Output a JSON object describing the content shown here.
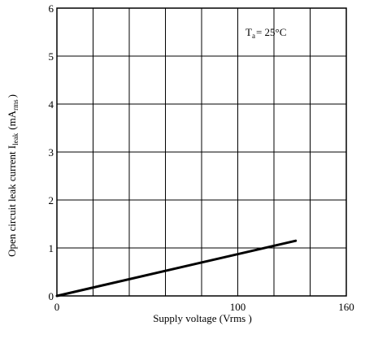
{
  "chart_data": {
    "type": "line",
    "title": "",
    "xlabel": "Supply voltage",
    "xlabel_unit": "(Vrms )",
    "ylabel_main": "Open circuit leak current I",
    "ylabel_sub": "leak",
    "ylabel_unit_open": "(mA",
    "ylabel_unit_sub": "rms",
    "ylabel_unit_close": ")",
    "xlim": [
      0,
      160
    ],
    "ylim": [
      0,
      6
    ],
    "x_tick_labels": [
      {
        "value": 0,
        "label": "0"
      },
      {
        "value": 100,
        "label": "100"
      },
      {
        "value": 160,
        "label": "160"
      }
    ],
    "y_tick_labels": [
      {
        "value": 0,
        "label": "0"
      },
      {
        "value": 1,
        "label": "1"
      },
      {
        "value": 2,
        "label": "2"
      },
      {
        "value": 3,
        "label": "3"
      },
      {
        "value": 4,
        "label": "4"
      },
      {
        "value": 5,
        "label": "5"
      },
      {
        "value": 6,
        "label": "6"
      }
    ],
    "x_gridlines": [
      0,
      20,
      40,
      60,
      80,
      100,
      120,
      140,
      160
    ],
    "y_gridlines": [
      0,
      1,
      2,
      3,
      4,
      5,
      6
    ],
    "grid": true,
    "series": [
      {
        "x": [
          0,
          132
        ],
        "y": [
          0,
          1.15
        ],
        "color": "#000000"
      }
    ],
    "annotation": {
      "prefix": "T",
      "sub": "a",
      "suffix": "= 25°C",
      "x": 108,
      "y": 5.55
    }
  }
}
